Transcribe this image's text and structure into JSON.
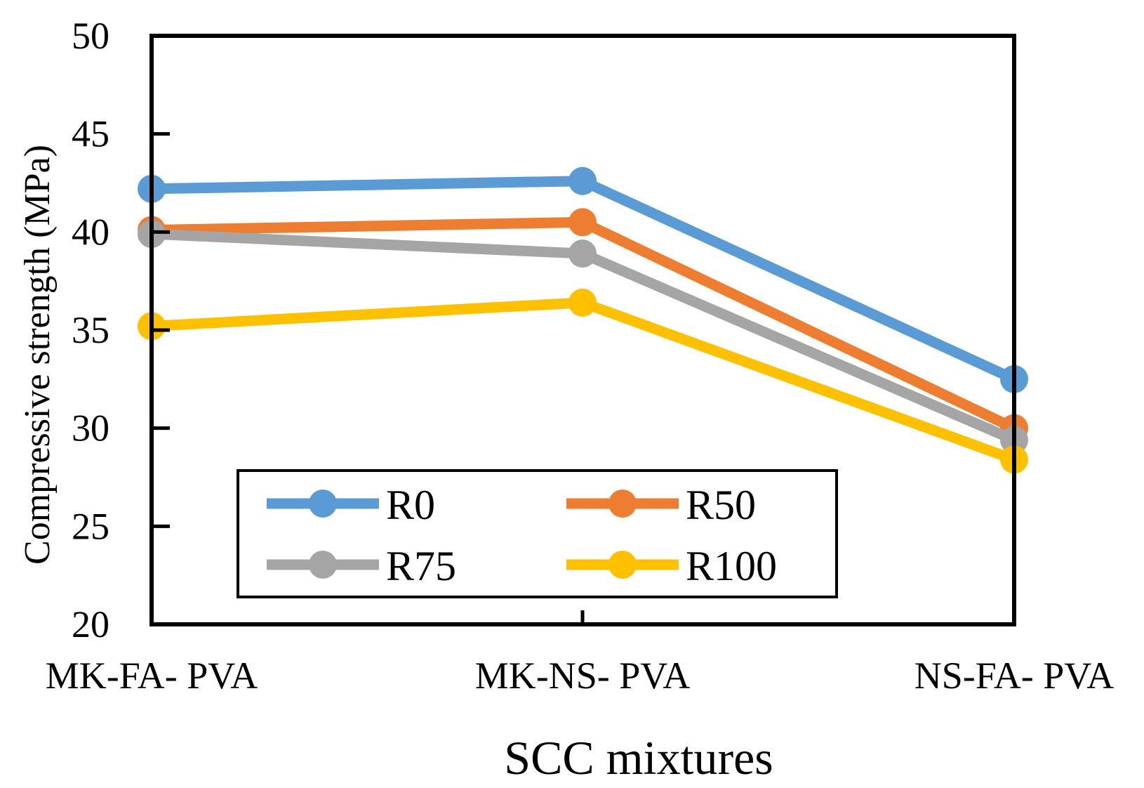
{
  "chart_data": {
    "type": "line",
    "title": "",
    "xlabel": "SCC mixtures",
    "ylabel": "Compressive strength (MPa)",
    "ylim": [
      20,
      50
    ],
    "yticks": [
      20,
      25,
      30,
      35,
      40,
      45,
      50
    ],
    "categories": [
      "MK-FA- PVA",
      "MK-NS- PVA",
      "NS-FA- PVA"
    ],
    "grid": false,
    "legend_position": "bottom-left",
    "series": [
      {
        "name": "R0",
        "color": "#5B9BD5",
        "values": [
          42.2,
          42.6,
          32.5
        ]
      },
      {
        "name": "R50",
        "color": "#ED7D31",
        "values": [
          40.1,
          40.5,
          30.0
        ]
      },
      {
        "name": "R75",
        "color": "#A5A5A5",
        "values": [
          39.9,
          38.9,
          29.4
        ]
      },
      {
        "name": "R100",
        "color": "#FFC000",
        "values": [
          35.2,
          36.4,
          28.4
        ]
      }
    ]
  }
}
